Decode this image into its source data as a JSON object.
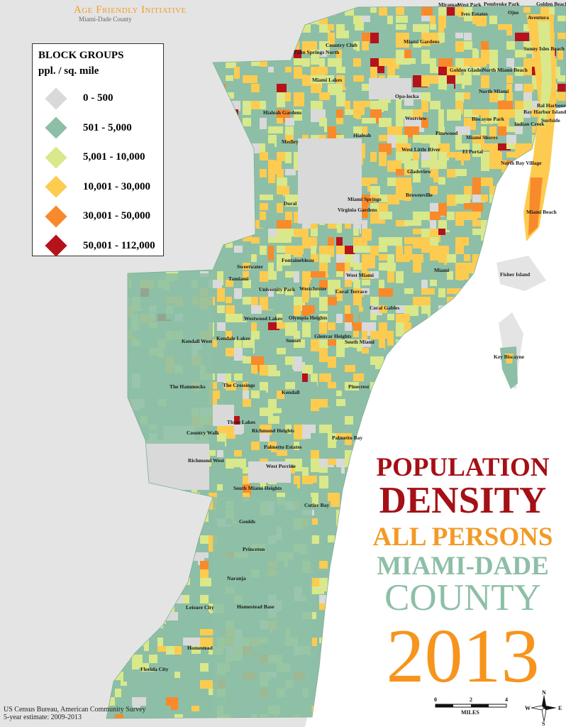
{
  "brand": {
    "name": "Age Friendly Initiative",
    "subtitle": "Miami-Dade County"
  },
  "legend": {
    "title": "BLOCK GROUPS",
    "units": "ppl. / sq. mile",
    "classes": [
      {
        "label": "0 - 500",
        "color": "#d9d9d9"
      },
      {
        "label": "501 - 5,000",
        "color": "#8dbfa6"
      },
      {
        "label": "5,001 - 10,000",
        "color": "#d8e88a"
      },
      {
        "label": "10,001 - 30,000",
        "color": "#fdcb4f"
      },
      {
        "label": "30,001 - 50,000",
        "color": "#f88a2b"
      },
      {
        "label": "50,001 - 112,000",
        "color": "#b5121b"
      }
    ]
  },
  "title": {
    "line1": "POPULATION",
    "line2": "DENSITY",
    "line3": "ALL PERSONS",
    "line4": "MIAMI-DADE",
    "line5": "COUNTY",
    "line6": "2013"
  },
  "source": {
    "line1": "US Census Bureau, American Community Survey",
    "line2": "5-year estimate: 2009-2013"
  },
  "scale": {
    "ticks": [
      "0",
      "2",
      "4"
    ],
    "unit": "MILES"
  },
  "compass": {
    "n": "N",
    "s": "S",
    "e": "E",
    "w": "W"
  },
  "places": [
    "Miramar",
    "West Park",
    "Pembroke Park",
    "Golden Beach",
    "Ives Estates",
    "Ojus",
    "Aventura",
    "Country Club",
    "Miami Gardens",
    "Palm Springs North",
    "Sunny Isles Beach",
    "Golden Glades",
    "North Miami Beach",
    "Miami Lakes",
    "North Miami",
    "Opa-locka",
    "Bal Harbour",
    "Bay Harbor Islands",
    "Surfside",
    "Hialeah Gardens",
    "Biscayne Park",
    "Indian Creek",
    "Westview",
    "Miami Shores",
    "Hialeah",
    "Pinewood",
    "Medley",
    "West Little River",
    "El Portal",
    "North Bay Village",
    "Gladeview",
    "Brownsville",
    "Doral",
    "Miami Springs",
    "Virginia Gardens",
    "Miami Beach",
    "Fontainebleau",
    "Sweetwater",
    "Miami",
    "West Miami",
    "Fisher Island",
    "Tamiami",
    "University Park",
    "Westchester",
    "Coral Terrace",
    "Coral Gables",
    "Westwood Lakes",
    "Olympia Heights",
    "Glenvar Heights",
    "Kendall West",
    "Kendale Lakes",
    "Sunset",
    "South Miami",
    "Key Biscayne",
    "The Hammocks",
    "The Crossings",
    "Kendall",
    "Pinecrest",
    "Three Lakes",
    "Richmond Heights",
    "Country Walk",
    "Palmetto Bay",
    "Palmetto Estates",
    "Richmond West",
    "West Perrine",
    "South Miami Heights",
    "Cutler Bay",
    "Goulds",
    "Princeton",
    "Naranja",
    "Leisure City",
    "Homestead Base",
    "Homestead",
    "Florida City"
  ]
}
